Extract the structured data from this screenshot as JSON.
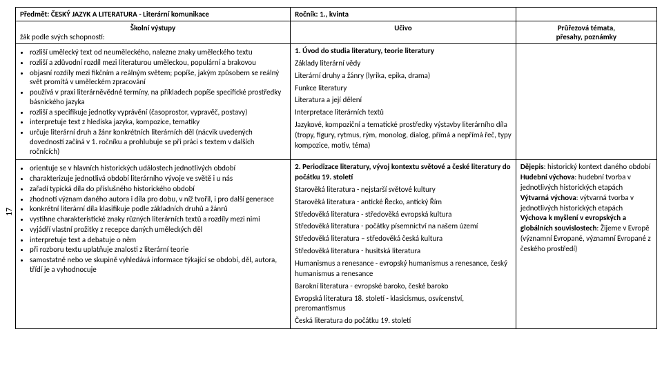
{
  "pageNumber": "17",
  "header": {
    "subject": "Předmět: ČESKÝ JAZYK A LITERATURA - Literární komunikace",
    "grade": "Ročník: 1., kvinta"
  },
  "subheader": {
    "col1a": "Školní výstupy",
    "col1b": "žák podle svých schopností:",
    "col2": "Učivo",
    "col3a": "Průřezová témata,",
    "col3b": "přesahy, poznámky"
  },
  "row1": {
    "outcomes": [
      "rozliší umělecký text od neuměleckého, nalezne znaky uměleckého textu",
      "rozliší a zdůvodní rozdíl mezi literaturou uměleckou, populární a brakovou",
      "objasní rozdíly mezi fikčním a reálným světem; popíše, jakým způsobem se reálný svět promítá v uměleckém zpracování",
      "používá v praxi literárněvědné termíny, na příkladech popíše specifické prostředky básnického jazyka",
      "rozliší a specifikuje jednotky vyprávění (časoprostor, vypravěč, postavy)",
      "interpretuje text z hlediska jazyka, kompozice, tematiky",
      "určuje literární druh a žánr konkrétních literárních děl (nácvik uvedených dovedností začíná v 1. ročníku a prohlubuje se při práci s textem v dalších ročnících)"
    ],
    "curriculumTitle": "1.   Úvod do studia literatury, teorie literatury",
    "curriculumLines": [
      "Základy literární vědy",
      "Literární druhy a žánry (lyrika, epika, drama)",
      "Funkce literatury",
      "Literatura a její dělení",
      "Interpretace literárních textů",
      "Jazykové, kompoziční a tematické prostředky výstavby literárního díla (tropy, figury, rytmus, rým, monolog, dialog, přímá a nepřímá řeč, typy kompozice, motiv, téma)"
    ],
    "cross": ""
  },
  "row2": {
    "outcomes": [
      "orientuje se v hlavních historických událostech jednotlivých období",
      "charakterizuje jednotlivá období literárního vývoje ve světě i u nás",
      "zařadí typická díla do příslušného historického období",
      "zhodnotí význam daného autora i díla pro dobu, v níž tvořil, i pro další generace",
      "konkrétní literární díla klasifikuje podle základních druhů a žánrů",
      "vystihne charakteristické znaky různých literárních textů a rozdíly mezi nimi",
      "vyjádří vlastní prožitky z recepce daných uměleckých děl",
      "interpretuje text a debatuje o něm",
      "při rozboru textu uplatňuje znalosti z literární teorie",
      "samostatně nebo ve skupině vyhledává informace týkající se období, děl, autora, třídí je a vyhodnocuje"
    ],
    "curriculumTitle": "2.   Periodizace literatury, vývoj kontextu světové a české literatury do počátku 19. století",
    "curriculumLines": [
      "Starověká literatura - nejstarší světové kultury",
      "Starověká literatura - antické Řecko, antický Řím",
      "Středověká literatura - středověká evropská kultura",
      "Středověká literatura - počátky písemnictví na našem území",
      "Středověká literatura – středověká česká kultura",
      "Středověká literatura - husitská literatura",
      "Humanismus a renesance - evropský humanismus a renesance, český humanismus a renesance",
      "Barokní literatura - evropské baroko, české baroko",
      "Evropská literatura 18. století - klasicismus, osvícenství, preromantismus",
      "Česká literatura do počátku 19. století"
    ],
    "cross": {
      "l1a": "Dějepis",
      "l1b": ": historický kontext daného období",
      "l2a": "Hudební výchova",
      "l2b": ": hudební tvorba v jednotlivých historických etapách",
      "l3a": "Výtvarná výchova",
      "l3b": ": výtvarná tvorba v jednotlivých historických etapách",
      "l4a": "Výchova k myšlení v evropských a globálních souvislostech",
      "l4b": ": Žijeme v Evropě (významní Evropané, významní Evropané z českého prostředí)"
    }
  }
}
